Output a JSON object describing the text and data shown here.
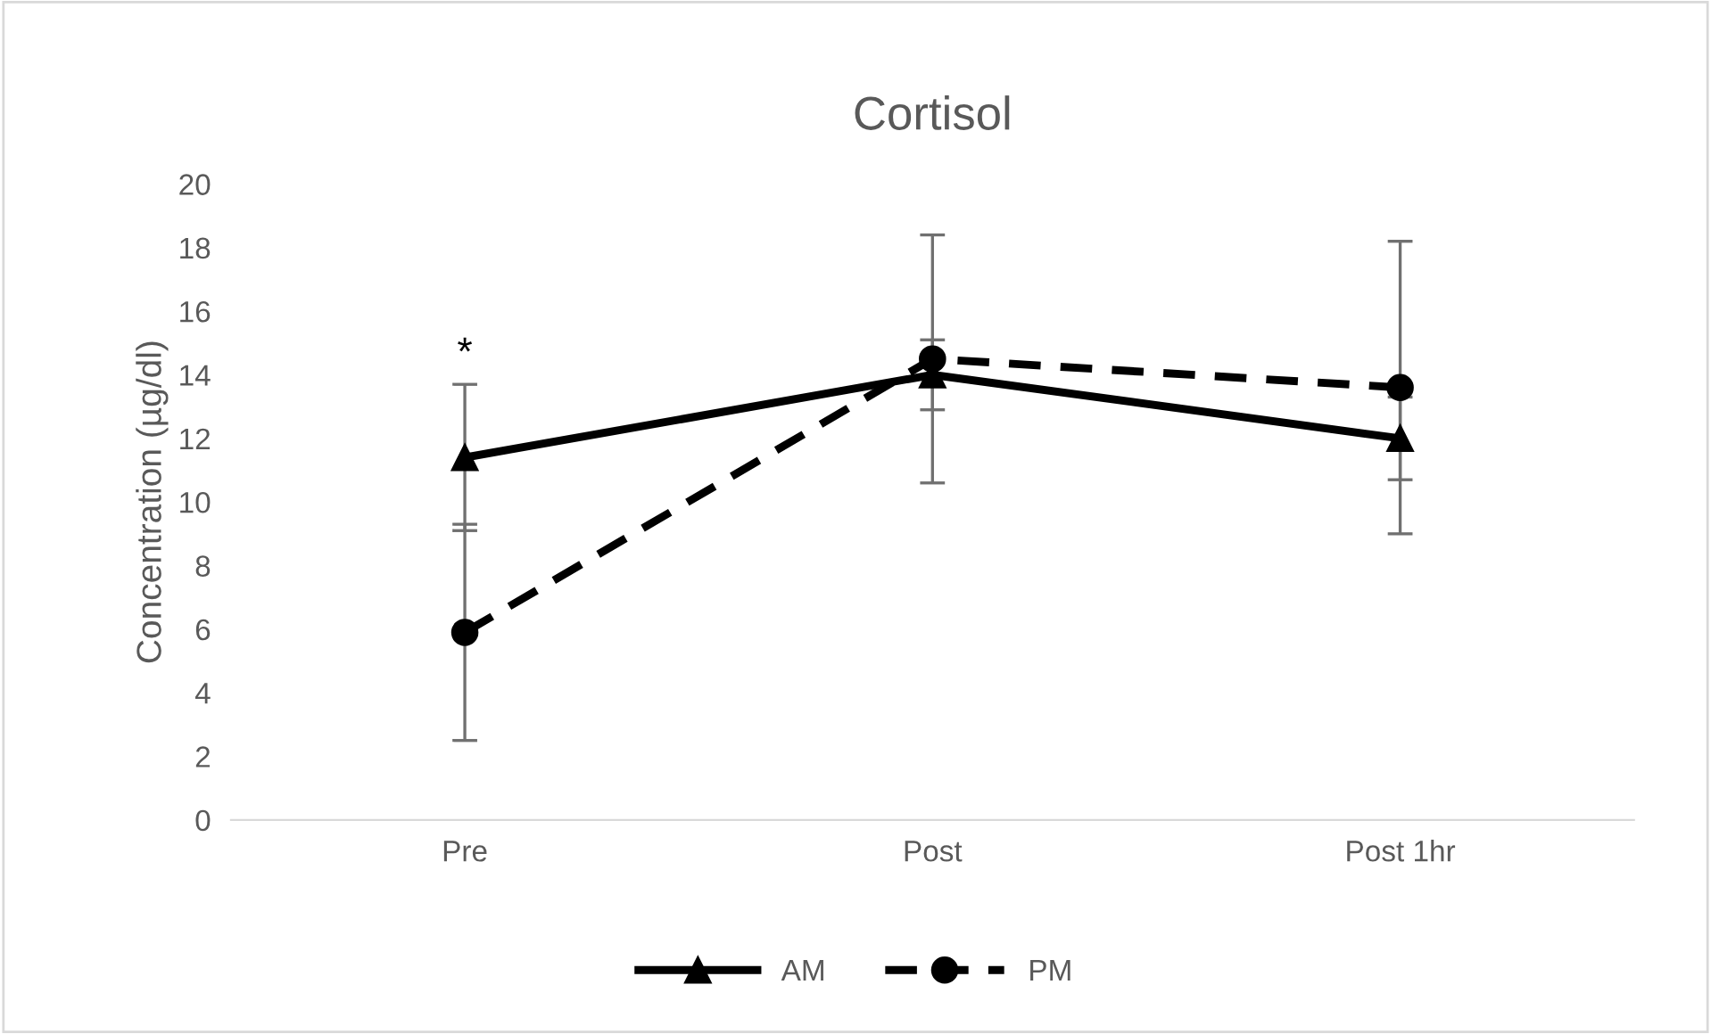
{
  "chart_data": {
    "type": "line",
    "title": "Cortisol",
    "ylabel": "Concentration (µg/dl)",
    "categories": [
      "Pre",
      "Post",
      "Post 1hr"
    ],
    "series": [
      {
        "name": "AM",
        "color": "#000000",
        "values": [
          11.4,
          14.0,
          12.0
        ],
        "errors": [
          2.3,
          1.1,
          1.3
        ],
        "marker": "triangle",
        "line_style": "solid"
      },
      {
        "name": "PM",
        "color": "#000000",
        "values": [
          5.9,
          14.5,
          13.6
        ],
        "errors": [
          3.4,
          3.9,
          4.6
        ],
        "marker": "circle",
        "line_style": "dashed"
      }
    ],
    "ylim": [
      0,
      20
    ],
    "yticks": [
      0,
      2,
      4,
      6,
      8,
      10,
      12,
      14,
      16,
      18,
      20
    ],
    "annotations": [
      "*"
    ],
    "grid": false,
    "legend": "bottom"
  }
}
